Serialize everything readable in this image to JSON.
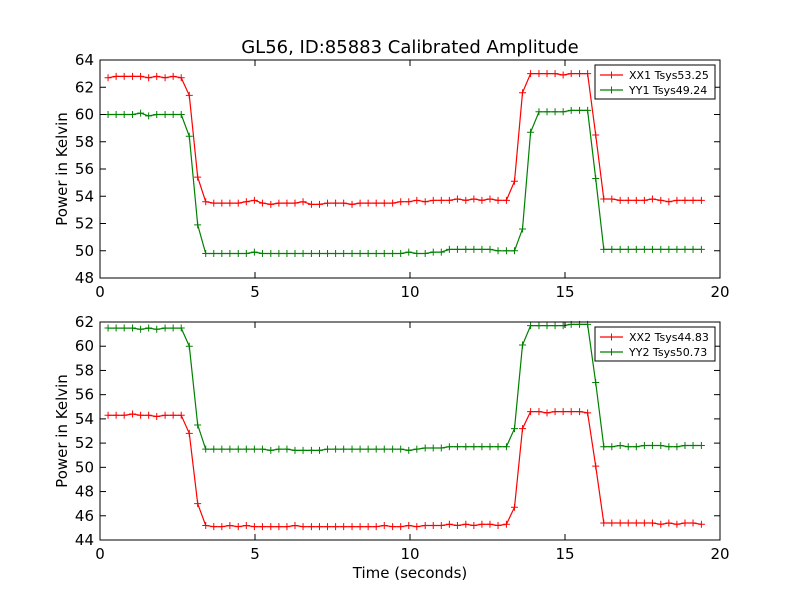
{
  "title": "GL56, ID:85883 Calibrated Amplitude",
  "xlabel": "Time (seconds)",
  "colors": {
    "red": "#ff0000",
    "green": "#008000"
  },
  "chart_data": [
    {
      "type": "line",
      "ylabel": "Power in Kelvin",
      "xlim": [
        0,
        20
      ],
      "ylim": [
        48,
        64
      ],
      "xticks": [
        0,
        5,
        10,
        15,
        20
      ],
      "yticks": [
        48,
        50,
        52,
        54,
        56,
        58,
        60,
        62,
        64
      ],
      "legend": "top-right",
      "grid": false,
      "x": [
        0.26,
        0.52,
        0.78,
        1.05,
        1.31,
        1.57,
        1.83,
        2.1,
        2.36,
        2.62,
        2.88,
        3.15,
        3.41,
        3.67,
        3.93,
        4.19,
        4.46,
        4.72,
        4.98,
        5.24,
        5.51,
        5.77,
        6.03,
        6.29,
        6.55,
        6.82,
        7.08,
        7.34,
        7.6,
        7.86,
        8.13,
        8.39,
        8.65,
        8.91,
        9.17,
        9.44,
        9.7,
        9.96,
        10.22,
        10.49,
        10.75,
        11.01,
        11.27,
        11.53,
        11.8,
        12.06,
        12.32,
        12.58,
        12.84,
        13.11,
        13.37,
        13.63,
        13.89,
        14.16,
        14.42,
        14.68,
        14.94,
        15.2,
        15.47,
        15.73,
        15.99,
        16.25,
        16.51,
        16.78,
        17.04,
        17.3,
        17.56,
        17.82,
        18.09,
        18.35,
        18.61,
        18.87,
        19.13,
        19.4
      ],
      "series": [
        {
          "name": "XX1 Tsys53.25",
          "color": "#ff0000",
          "values": [
            62.7,
            62.8,
            62.8,
            62.8,
            62.8,
            62.7,
            62.8,
            62.7,
            62.8,
            62.7,
            61.4,
            55.4,
            53.6,
            53.5,
            53.5,
            53.5,
            53.5,
            53.6,
            53.7,
            53.5,
            53.4,
            53.5,
            53.5,
            53.5,
            53.6,
            53.4,
            53.4,
            53.5,
            53.5,
            53.5,
            53.4,
            53.5,
            53.5,
            53.5,
            53.5,
            53.5,
            53.6,
            53.6,
            53.7,
            53.6,
            53.7,
            53.7,
            53.7,
            53.8,
            53.7,
            53.8,
            53.7,
            53.8,
            53.7,
            53.7,
            55.1,
            61.6,
            63.0,
            63.0,
            63.0,
            63.0,
            62.9,
            63.0,
            63.0,
            63.0,
            58.5,
            53.8,
            53.8,
            53.7,
            53.7,
            53.7,
            53.7,
            53.8,
            53.7,
            53.6,
            53.7,
            53.7,
            53.7,
            53.7
          ]
        },
        {
          "name": "YY1 Tsys49.24",
          "color": "#008000",
          "values": [
            60.0,
            60.0,
            60.0,
            60.0,
            60.1,
            59.9,
            60.0,
            60.0,
            60.0,
            60.0,
            58.4,
            51.9,
            49.8,
            49.8,
            49.8,
            49.8,
            49.8,
            49.8,
            49.9,
            49.8,
            49.8,
            49.8,
            49.8,
            49.8,
            49.8,
            49.8,
            49.8,
            49.8,
            49.8,
            49.8,
            49.8,
            49.8,
            49.8,
            49.8,
            49.8,
            49.8,
            49.8,
            49.9,
            49.8,
            49.8,
            49.9,
            49.9,
            50.1,
            50.1,
            50.1,
            50.1,
            50.1,
            50.1,
            50.0,
            50.0,
            50.0,
            51.6,
            58.7,
            60.2,
            60.2,
            60.2,
            60.2,
            60.3,
            60.3,
            60.3,
            55.3,
            50.1,
            50.1,
            50.1,
            50.1,
            50.1,
            50.1,
            50.1,
            50.1,
            50.1,
            50.1,
            50.1,
            50.1,
            50.1
          ]
        }
      ]
    },
    {
      "type": "line",
      "ylabel": "Power in Kelvin",
      "xlim": [
        0,
        20
      ],
      "ylim": [
        44,
        62
      ],
      "xticks": [
        0,
        5,
        10,
        15,
        20
      ],
      "yticks": [
        44,
        46,
        48,
        50,
        52,
        54,
        56,
        58,
        60,
        62
      ],
      "legend": "top-right",
      "grid": false,
      "x": [
        0.26,
        0.52,
        0.78,
        1.05,
        1.31,
        1.57,
        1.83,
        2.1,
        2.36,
        2.62,
        2.88,
        3.15,
        3.41,
        3.67,
        3.93,
        4.19,
        4.46,
        4.72,
        4.98,
        5.24,
        5.51,
        5.77,
        6.03,
        6.29,
        6.55,
        6.82,
        7.08,
        7.34,
        7.6,
        7.86,
        8.13,
        8.39,
        8.65,
        8.91,
        9.17,
        9.44,
        9.7,
        9.96,
        10.22,
        10.49,
        10.75,
        11.01,
        11.27,
        11.53,
        11.8,
        12.06,
        12.32,
        12.58,
        12.84,
        13.11,
        13.37,
        13.63,
        13.89,
        14.16,
        14.42,
        14.68,
        14.94,
        15.2,
        15.47,
        15.73,
        15.99,
        16.25,
        16.51,
        16.78,
        17.04,
        17.3,
        17.56,
        17.82,
        18.09,
        18.35,
        18.61,
        18.87,
        19.13,
        19.4
      ],
      "series": [
        {
          "name": "XX2 Tsys44.83",
          "color": "#ff0000",
          "values": [
            54.3,
            54.3,
            54.3,
            54.4,
            54.3,
            54.3,
            54.2,
            54.3,
            54.3,
            54.3,
            52.8,
            47.0,
            45.2,
            45.1,
            45.1,
            45.2,
            45.1,
            45.2,
            45.1,
            45.1,
            45.1,
            45.1,
            45.1,
            45.2,
            45.1,
            45.1,
            45.1,
            45.1,
            45.1,
            45.1,
            45.1,
            45.1,
            45.1,
            45.1,
            45.2,
            45.1,
            45.1,
            45.2,
            45.1,
            45.2,
            45.2,
            45.2,
            45.3,
            45.2,
            45.3,
            45.2,
            45.3,
            45.3,
            45.2,
            45.3,
            46.7,
            53.2,
            54.6,
            54.6,
            54.5,
            54.6,
            54.6,
            54.6,
            54.6,
            54.5,
            50.1,
            45.4,
            45.4,
            45.4,
            45.4,
            45.4,
            45.4,
            45.4,
            45.3,
            45.4,
            45.3,
            45.4,
            45.4,
            45.3
          ]
        },
        {
          "name": "YY2 Tsys50.73",
          "color": "#008000",
          "values": [
            61.5,
            61.5,
            61.5,
            61.5,
            61.4,
            61.5,
            61.4,
            61.5,
            61.5,
            61.5,
            60.0,
            53.5,
            51.5,
            51.5,
            51.5,
            51.5,
            51.5,
            51.5,
            51.5,
            51.5,
            51.4,
            51.5,
            51.5,
            51.4,
            51.4,
            51.4,
            51.4,
            51.5,
            51.5,
            51.5,
            51.5,
            51.5,
            51.5,
            51.5,
            51.5,
            51.5,
            51.5,
            51.4,
            51.5,
            51.6,
            51.6,
            51.6,
            51.7,
            51.7,
            51.7,
            51.7,
            51.7,
            51.7,
            51.7,
            51.7,
            53.2,
            60.1,
            61.7,
            61.7,
            61.7,
            61.7,
            61.7,
            61.8,
            61.8,
            61.8,
            57.0,
            51.7,
            51.7,
            51.8,
            51.7,
            51.7,
            51.8,
            51.8,
            51.8,
            51.7,
            51.7,
            51.8,
            51.8,
            51.8
          ]
        }
      ]
    }
  ]
}
